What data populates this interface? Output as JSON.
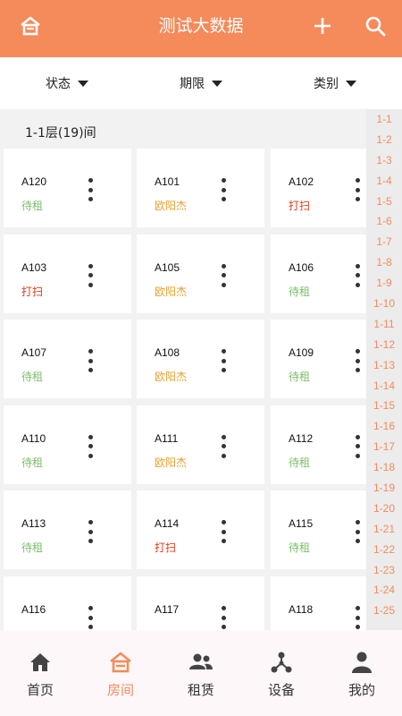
{
  "header": {
    "title": "测试大数据",
    "icons": [
      "home-outline-icon",
      "plus-icon",
      "search-icon"
    ],
    "color": "#f58a5a"
  },
  "filters": [
    {
      "label": "状态"
    },
    {
      "label": "期限"
    },
    {
      "label": "类别"
    }
  ],
  "floor": {
    "title": "1-1层(19)间"
  },
  "rooms": [
    {
      "name": "A120",
      "status": "待租",
      "tone": "green"
    },
    {
      "name": "A101",
      "status": "欧阳杰",
      "tone": "orange"
    },
    {
      "name": "A102",
      "status": "打扫",
      "tone": "red"
    },
    {
      "name": "A103",
      "status": "打扫",
      "tone": "red"
    },
    {
      "name": "A105",
      "status": "欧阳杰",
      "tone": "orange"
    },
    {
      "name": "A106",
      "status": "待租",
      "tone": "green"
    },
    {
      "name": "A107",
      "status": "待租",
      "tone": "green"
    },
    {
      "name": "A108",
      "status": "欧阳杰",
      "tone": "orange"
    },
    {
      "name": "A109",
      "status": "待租",
      "tone": "green"
    },
    {
      "name": "A110",
      "status": "待租",
      "tone": "green"
    },
    {
      "name": "A111",
      "status": "欧阳杰",
      "tone": "orange"
    },
    {
      "name": "A112",
      "status": "待租",
      "tone": "green"
    },
    {
      "name": "A113",
      "status": "待租",
      "tone": "green"
    },
    {
      "name": "A114",
      "status": "打扫",
      "tone": "red"
    },
    {
      "name": "A115",
      "status": "待租",
      "tone": "green"
    },
    {
      "name": "A116",
      "status": "",
      "tone": "green"
    },
    {
      "name": "A117",
      "status": "",
      "tone": "green"
    },
    {
      "name": "A118",
      "status": "",
      "tone": "green"
    }
  ],
  "floor_index": [
    "1-1",
    "1-2",
    "1-3",
    "1-4",
    "1-5",
    "1-6",
    "1-7",
    "1-8",
    "1-9",
    "1-10",
    "1-11",
    "1-12",
    "1-13",
    "1-14",
    "1-15",
    "1-16",
    "1-17",
    "1-18",
    "1-19",
    "1-20",
    "1-21",
    "1-22",
    "1-23",
    "1-24",
    "1-25"
  ],
  "tabs": [
    {
      "label": "首页",
      "icon": "home-icon"
    },
    {
      "label": "房间",
      "icon": "room-icon",
      "active": true
    },
    {
      "label": "租赁",
      "icon": "people-icon"
    },
    {
      "label": "设备",
      "icon": "device-network-icon"
    },
    {
      "label": "我的",
      "icon": "person-icon"
    }
  ],
  "status_colors": {
    "green": "#7bbf6a",
    "orange": "#e6a22e",
    "red": "#e23b1c"
  }
}
